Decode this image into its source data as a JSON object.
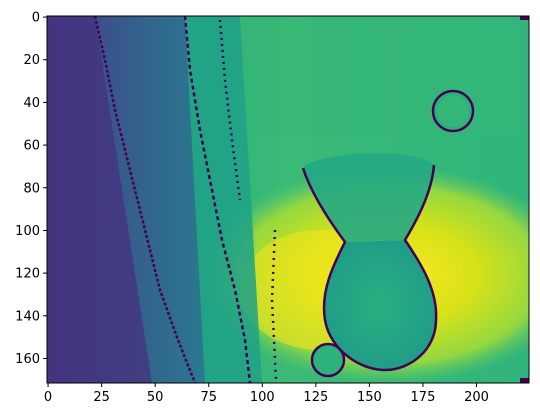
{
  "chart_data": {
    "type": "heatmap",
    "description_scene": "depth map of a wall and a glass vase",
    "colormap": "viridis",
    "image_shape": {
      "rows": 172,
      "cols": 225
    },
    "x_ticks": [
      0,
      25,
      50,
      75,
      100,
      125,
      150,
      175,
      200
    ],
    "y_ticks": [
      0,
      20,
      40,
      60,
      80,
      100,
      120,
      140,
      160
    ],
    "xlim": [
      -0.5,
      224.5
    ],
    "ylim": [
      171.5,
      -0.5
    ],
    "value_range": [
      0,
      1
    ],
    "regions": [
      {
        "name": "far-left-band",
        "x_range": [
          0,
          25
        ],
        "level": 0.12
      },
      {
        "name": "left-wall-gradient",
        "x_range": [
          25,
          75
        ],
        "level": 0.28
      },
      {
        "name": "teal-band",
        "x_range": [
          75,
          90
        ],
        "level": 0.45
      },
      {
        "name": "background",
        "x_range": [
          90,
          225
        ],
        "level": 0.65
      },
      {
        "name": "vase-body",
        "x_range": [
          125,
          180
        ],
        "level": 0.55
      },
      {
        "name": "bright-zone",
        "x_range": [
          105,
          215
        ],
        "y_range": [
          100,
          150
        ],
        "level": 0.9
      }
    ]
  }
}
